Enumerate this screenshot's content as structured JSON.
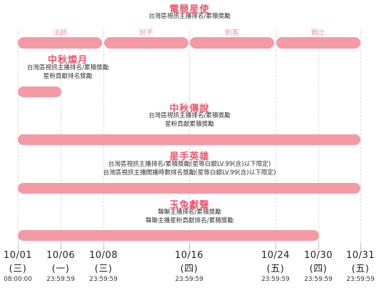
{
  "header": {
    "title": "電競星使",
    "subtitle": "台灣區視訊主播排名/累積獎勵"
  },
  "roles": [
    "法師",
    "射手",
    "刺客",
    "戰士"
  ],
  "events": {
    "moon": {
      "title": "中秋燦月",
      "line1": "台灣區視訊主播排名/累積獎勵",
      "line2": "星粉貢獻排名獎勵"
    },
    "legend": {
      "title": "中秋傳說",
      "line1": "台灣區視訊主播排名/累積獎勵",
      "line2": "星粉貢獻累積獎勵"
    },
    "hero": {
      "title": "星手英雄",
      "line1": "台灣區視訊主播排名/累積獎勵(星等白銀LV.99(含)以下限定)",
      "line2": "台灣區視訊主播開播時數排名獎勵(星等白銀LV.99(含)以下限定)"
    },
    "rabbit": {
      "title": "玉兔獻聲",
      "line1": "聲聯主播排名/累積獎勵",
      "line2": "聲聯主播星粉貢獻排名/累積獎勵"
    }
  },
  "timeline": [
    {
      "date": "10/01",
      "day": "(三)",
      "time": "08:00:00"
    },
    {
      "date": "10/06",
      "day": "(一)",
      "time": "23:59:59"
    },
    {
      "date": "10/08",
      "day": "(三)",
      "time": "23:59:59"
    },
    {
      "date": "10/16",
      "day": "(四)",
      "time": "23:59:59"
    },
    {
      "date": "10/24",
      "day": "(五)",
      "time": "23:59:59"
    },
    {
      "date": "10/30",
      "day": "(四)",
      "time": "23:59:59"
    },
    {
      "date": "10/31",
      "day": "(五)",
      "time": "23:59:59"
    }
  ],
  "colors": {
    "accent": "#f0566b",
    "bar": "#f39aa5"
  }
}
